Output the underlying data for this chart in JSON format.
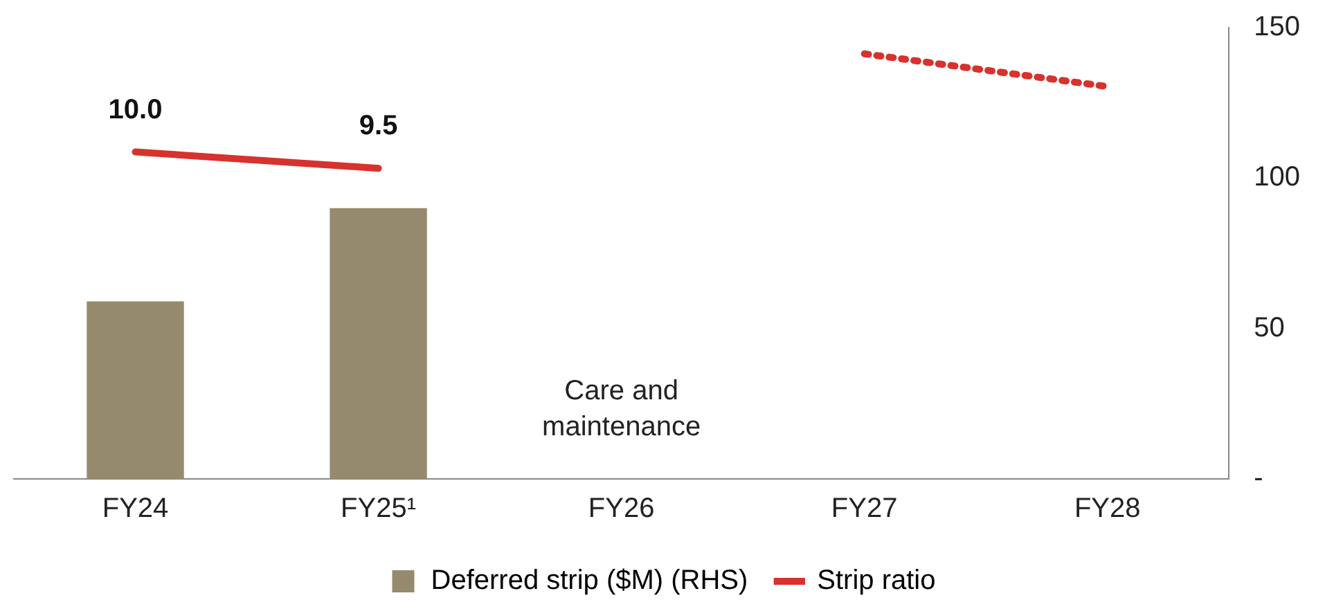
{
  "chart_data": {
    "type": "bar",
    "categories": [
      "FY24",
      "FY25¹",
      "FY26",
      "FY27",
      "FY28"
    ],
    "series": [
      {
        "name": "Deferred strip ($M) (RHS)",
        "color": "#968a6e",
        "values": [
          59,
          90,
          null,
          null,
          null
        ]
      },
      {
        "name": "Strip ratio",
        "type": "line",
        "axis": "y2",
        "color": "#d7322d",
        "values": [
          10.0,
          9.5,
          null,
          null,
          null
        ],
        "value_labels": [
          "10.0",
          "9.5",
          null,
          null,
          null
        ]
      },
      {
        "type": "line",
        "axis": "y2",
        "color": "#d7322d",
        "line_style": "dotted",
        "values": [
          null,
          null,
          null,
          13,
          12
        ]
      }
    ],
    "ylim": [
      0,
      150
    ],
    "yticks": [
      {
        "value": 0,
        "label": "-"
      },
      50,
      100,
      150
    ],
    "y2lim": [
      0,
      13.8
    ],
    "grid": false,
    "legend": "bottom",
    "marker": "none",
    "annotations": [
      "Care and maintenance"
    ]
  }
}
